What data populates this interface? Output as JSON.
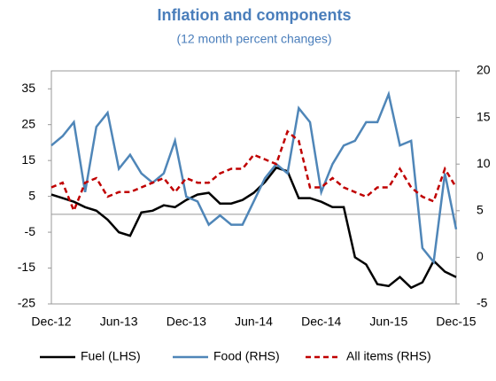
{
  "chart_data": {
    "type": "line",
    "title": "Inflation and components",
    "subtitle": "(12 month percent changes)",
    "categories": [
      "Dec-12",
      null,
      null,
      null,
      null,
      null,
      "Jun-13",
      null,
      null,
      null,
      null,
      null,
      "Dec-13",
      null,
      null,
      null,
      null,
      null,
      "Jun-14",
      null,
      null,
      null,
      null,
      null,
      "Dec-14",
      null,
      null,
      null,
      null,
      null,
      "Jun-15",
      null,
      null,
      null,
      null,
      null,
      "Dec-15"
    ],
    "ylim": [
      -25,
      40
    ],
    "yticks": [
      -25,
      -15,
      -5,
      5,
      15,
      25,
      35
    ],
    "y2lim": [
      -5,
      20
    ],
    "y2ticks": [
      -5,
      0,
      5,
      10,
      15,
      20
    ],
    "series": [
      {
        "name": "Fuel (LHS)",
        "color": "#000000",
        "axis": "y",
        "dash": false,
        "values": [
          5.5,
          4.5,
          3.5,
          2,
          1,
          -1.5,
          -5,
          -6,
          0.5,
          1,
          2.5,
          2,
          4,
          5.5,
          6,
          3,
          3,
          4,
          6,
          9,
          13,
          12,
          4.5,
          4.5,
          3.5,
          2,
          2,
          -12,
          -14,
          -19.5,
          -20,
          -17.5,
          -20.5,
          -19,
          -13,
          -16,
          -17.5
        ]
      },
      {
        "name": "Food (RHS)",
        "color": "#4f86b8",
        "axis": "y2",
        "dash": false,
        "values": [
          12,
          13,
          14.5,
          7,
          14,
          15.5,
          9.5,
          11,
          9,
          8,
          9,
          12.5,
          6.5,
          6,
          3.5,
          4.5,
          3.5,
          3.5,
          6,
          8.5,
          10,
          9,
          16,
          14.5,
          7,
          10,
          12,
          12.5,
          14.5,
          14.5,
          17.5,
          12,
          12.5,
          1,
          -0.5,
          9,
          3
        ]
      },
      {
        "name": "All items (RHS)",
        "color": "#c00000",
        "axis": "y2",
        "dash": true,
        "values": [
          7.5,
          8,
          5,
          8,
          8.5,
          6.5,
          7,
          7,
          7.5,
          8,
          8.5,
          7,
          8.5,
          8,
          8,
          9,
          9.5,
          9.5,
          11,
          10.5,
          10,
          13.5,
          12.5,
          7.5,
          7.5,
          8.5,
          7.5,
          7,
          6.5,
          7.5,
          7.5,
          9.5,
          7.5,
          6.5,
          6,
          9.5,
          7.5
        ]
      }
    ]
  }
}
